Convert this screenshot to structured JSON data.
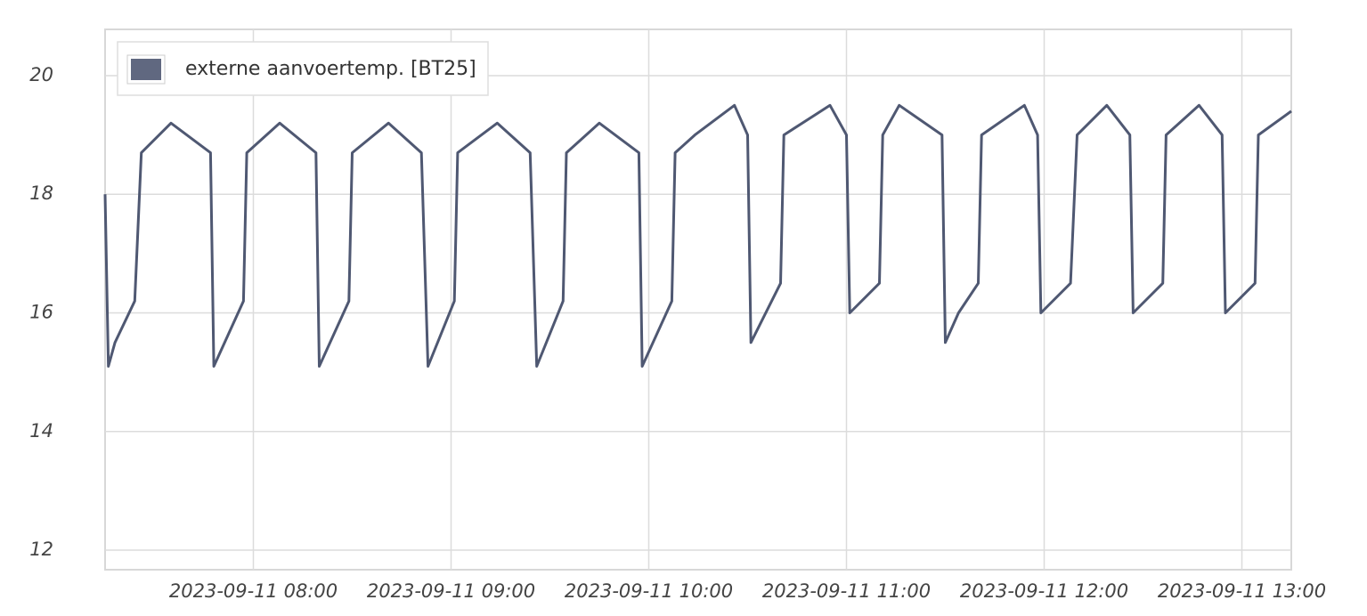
{
  "chart_data": {
    "type": "line",
    "x": [
      "2023-09-11 07:15",
      "2023-09-11 07:16",
      "2023-09-11 07:18",
      "2023-09-11 07:24",
      "2023-09-11 07:26",
      "2023-09-11 07:35",
      "2023-09-11 07:47",
      "2023-09-11 07:48",
      "2023-09-11 07:57",
      "2023-09-11 07:58",
      "2023-09-11 08:08",
      "2023-09-11 08:19",
      "2023-09-11 08:20",
      "2023-09-11 08:29",
      "2023-09-11 08:30",
      "2023-09-11 08:41",
      "2023-09-11 08:51",
      "2023-09-11 08:53",
      "2023-09-11 09:01",
      "2023-09-11 09:02",
      "2023-09-11 09:14",
      "2023-09-11 09:24",
      "2023-09-11 09:26",
      "2023-09-11 09:34",
      "2023-09-11 09:35",
      "2023-09-11 09:45",
      "2023-09-11 09:57",
      "2023-09-11 09:58",
      "2023-09-11 10:07",
      "2023-09-11 10:08",
      "2023-09-11 10:14",
      "2023-09-11 10:26",
      "2023-09-11 10:30",
      "2023-09-11 10:31",
      "2023-09-11 10:40",
      "2023-09-11 10:41",
      "2023-09-11 10:55",
      "2023-09-11 11:00",
      "2023-09-11 11:01",
      "2023-09-11 11:10",
      "2023-09-11 11:11",
      "2023-09-11 11:16",
      "2023-09-11 11:29",
      "2023-09-11 11:30",
      "2023-09-11 11:34",
      "2023-09-11 11:40",
      "2023-09-11 11:41",
      "2023-09-11 11:54",
      "2023-09-11 11:58",
      "2023-09-11 11:59",
      "2023-09-11 12:08",
      "2023-09-11 12:10",
      "2023-09-11 12:19",
      "2023-09-11 12:26",
      "2023-09-11 12:27",
      "2023-09-11 12:36",
      "2023-09-11 12:37",
      "2023-09-11 12:47",
      "2023-09-11 12:54",
      "2023-09-11 12:55",
      "2023-09-11 13:04",
      "2023-09-11 13:05",
      "2023-09-11 13:15"
    ],
    "series": [
      {
        "name": "externe aanvoertemp. [BT25]",
        "color": "#4f5872",
        "values": [
          18.0,
          15.1,
          15.5,
          16.2,
          18.7,
          19.2,
          18.7,
          15.1,
          16.2,
          18.7,
          19.2,
          18.7,
          15.1,
          16.2,
          18.7,
          19.2,
          18.7,
          15.1,
          16.2,
          18.7,
          19.2,
          18.7,
          15.1,
          16.2,
          18.7,
          19.2,
          18.7,
          15.1,
          16.2,
          18.7,
          19.0,
          19.5,
          19.0,
          15.5,
          16.5,
          19.0,
          19.5,
          19.0,
          16.0,
          16.5,
          19.0,
          19.5,
          19.0,
          15.5,
          16.0,
          16.5,
          19.0,
          19.5,
          19.0,
          16.0,
          16.5,
          19.0,
          19.5,
          19.0,
          16.0,
          16.5,
          19.0,
          19.5,
          19.0,
          16.0,
          16.5,
          19.0,
          19.4
        ]
      }
    ],
    "xlim": [
      "2023-09-11 07:15",
      "2023-09-11 13:15"
    ],
    "xticks": [
      "2023-09-11 08:00",
      "2023-09-11 09:00",
      "2023-09-11 10:00",
      "2023-09-11 11:00",
      "2023-09-11 12:00",
      "2023-09-11 13:00"
    ],
    "ylim": [
      11.67,
      20.78
    ],
    "yticks": [
      12,
      14,
      16,
      18,
      20
    ],
    "grid": true,
    "legend": "top-left"
  }
}
